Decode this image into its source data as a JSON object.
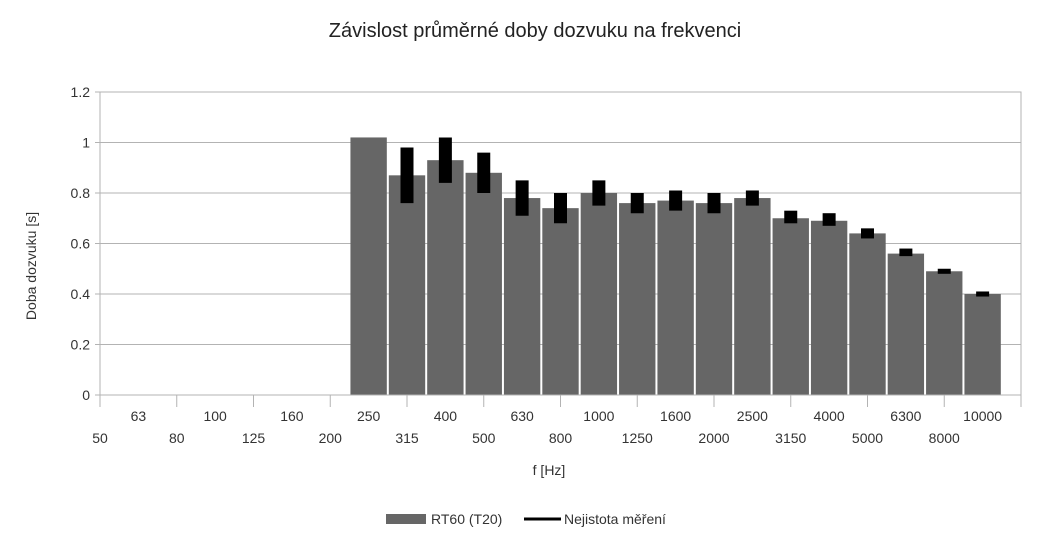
{
  "chart_data": {
    "type": "bar",
    "title": "Závislost průměrné doby dozvuku na frekvenci",
    "xlabel": "f [Hz]",
    "ylabel": "Doba dozvuku [s]",
    "ylim": [
      0,
      1.2
    ],
    "yticks": [
      "0",
      "0.2",
      "0.4",
      "0.6",
      "0.8",
      "1",
      "1.2"
    ],
    "grid": true,
    "legend_position": "bottom",
    "categories": [
      "50",
      "63",
      "80",
      "100",
      "125",
      "160",
      "200",
      "250",
      "315",
      "400",
      "500",
      "630",
      "800",
      "1000",
      "1250",
      "1600",
      "2000",
      "2500",
      "3150",
      "4000",
      "5000",
      "6300",
      "8000",
      "10000"
    ],
    "series": [
      {
        "name": "RT60 (T20)",
        "type": "bar",
        "color": "#666666",
        "values": [
          null,
          null,
          null,
          null,
          null,
          null,
          null,
          1.02,
          0.87,
          0.93,
          0.88,
          0.78,
          0.74,
          0.8,
          0.76,
          0.77,
          0.76,
          0.78,
          0.7,
          0.69,
          0.64,
          0.56,
          0.49,
          0.4
        ]
      },
      {
        "name": "Nejistota měření",
        "type": "errorbar",
        "color": "#000000",
        "low": [
          null,
          null,
          null,
          null,
          null,
          null,
          null,
          null,
          0.76,
          0.84,
          0.8,
          0.71,
          0.68,
          0.75,
          0.72,
          0.73,
          0.72,
          0.75,
          0.68,
          0.67,
          0.62,
          0.55,
          0.48,
          0.39
        ],
        "high": [
          null,
          null,
          null,
          null,
          null,
          null,
          null,
          null,
          0.98,
          1.02,
          0.96,
          0.85,
          0.8,
          0.85,
          0.8,
          0.81,
          0.8,
          0.81,
          0.73,
          0.72,
          0.66,
          0.58,
          0.5,
          0.41
        ]
      }
    ]
  }
}
